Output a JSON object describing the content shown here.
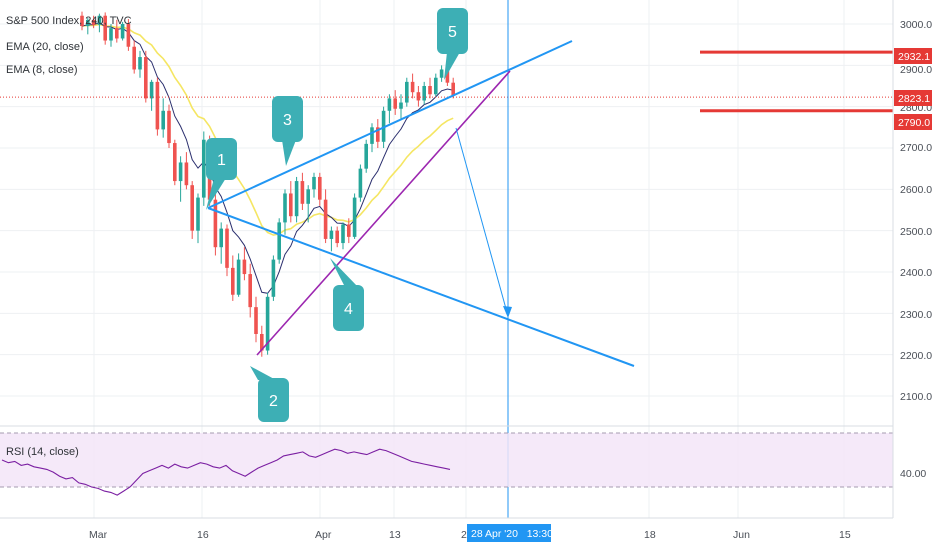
{
  "header": {
    "symbol_title": "S&P 500 Index, 240, TVC",
    "indicators": [
      "EMA (20, close)",
      "EMA (8, close)"
    ],
    "rsi_label": "RSI (14, close)"
  },
  "price_axis": {
    "ticks": [
      "3000.0",
      "2900.0",
      "2800.0",
      "2700.0",
      "2600.0",
      "2500.0",
      "2400.0",
      "2300.0",
      "2200.0",
      "2100.0"
    ],
    "marker_2932": "2932.1",
    "marker_2823": "2823.1",
    "marker_2790": "2790.0"
  },
  "rsi_axis": {
    "ticks": [
      "40.00"
    ]
  },
  "time_axis": {
    "labels": [
      "Mar",
      "16",
      "Apr",
      "13",
      "2",
      "18",
      "Jun",
      "15"
    ],
    "cursor_label": "28 Apr '20   13:30"
  },
  "annotations": {
    "callouts": [
      "1",
      "2",
      "3",
      "4",
      "5"
    ]
  },
  "colors": {
    "up": "#26a69a",
    "down": "#ef5350",
    "ema20": "#f5e663",
    "ema8": "#2b2f6e",
    "trend_blue": "#2196f3",
    "trend_purple": "#9c27b0",
    "callout": "#3dafb5",
    "level_red": "#e53935",
    "rsi": "#7b1fa2",
    "rsi_band": "#f3e5f8"
  },
  "chart_data": {
    "type": "candlestick",
    "title": "S&P 500 Index, 240, TVC",
    "ylim": [
      2040,
      3050
    ],
    "levels": [
      2932.1,
      2823.1,
      2790.0
    ],
    "series": [
      {
        "name": "S&P 500 Index",
        "ohlc_sequence": [
          [
            3020,
            3030,
            2985,
            2995
          ],
          [
            2995,
            3015,
            2975,
            3010
          ],
          [
            3010,
            3020,
            2990,
            2998
          ],
          [
            2998,
            3025,
            2980,
            3020
          ],
          [
            3020,
            3028,
            2950,
            2960
          ],
          [
            2960,
            3000,
            2945,
            2990
          ],
          [
            2990,
            3010,
            2955,
            2965
          ],
          [
            2965,
            3005,
            2960,
            3000
          ],
          [
            3000,
            3012,
            2935,
            2945
          ],
          [
            2945,
            2960,
            2880,
            2890
          ],
          [
            2890,
            2935,
            2870,
            2920
          ],
          [
            2920,
            2935,
            2810,
            2820
          ],
          [
            2820,
            2865,
            2790,
            2860
          ],
          [
            2860,
            2870,
            2730,
            2745
          ],
          [
            2745,
            2820,
            2725,
            2790
          ],
          [
            2790,
            2805,
            2700,
            2712
          ],
          [
            2712,
            2720,
            2610,
            2620
          ],
          [
            2620,
            2680,
            2570,
            2665
          ],
          [
            2665,
            2690,
            2600,
            2610
          ],
          [
            2610,
            2620,
            2480,
            2500
          ],
          [
            2500,
            2590,
            2470,
            2580
          ],
          [
            2580,
            2740,
            2560,
            2720
          ],
          [
            2720,
            2730,
            2560,
            2575
          ],
          [
            2575,
            2590,
            2440,
            2460
          ],
          [
            2460,
            2520,
            2420,
            2505
          ],
          [
            2505,
            2515,
            2390,
            2410
          ],
          [
            2410,
            2440,
            2330,
            2345
          ],
          [
            2345,
            2445,
            2340,
            2430
          ],
          [
            2430,
            2460,
            2380,
            2395
          ],
          [
            2395,
            2420,
            2290,
            2315
          ],
          [
            2315,
            2340,
            2230,
            2250
          ],
          [
            2250,
            2270,
            2195,
            2210
          ],
          [
            2210,
            2350,
            2200,
            2340
          ],
          [
            2340,
            2440,
            2330,
            2430
          ],
          [
            2430,
            2530,
            2420,
            2520
          ],
          [
            2520,
            2600,
            2490,
            2590
          ],
          [
            2590,
            2620,
            2520,
            2535
          ],
          [
            2535,
            2630,
            2520,
            2620
          ],
          [
            2620,
            2640,
            2550,
            2565
          ],
          [
            2565,
            2610,
            2520,
            2600
          ],
          [
            2600,
            2640,
            2580,
            2630
          ],
          [
            2630,
            2640,
            2560,
            2575
          ],
          [
            2575,
            2600,
            2470,
            2480
          ],
          [
            2480,
            2510,
            2450,
            2500
          ],
          [
            2500,
            2510,
            2460,
            2470
          ],
          [
            2470,
            2520,
            2455,
            2515
          ],
          [
            2515,
            2530,
            2470,
            2485
          ],
          [
            2485,
            2590,
            2480,
            2580
          ],
          [
            2580,
            2660,
            2570,
            2650
          ],
          [
            2650,
            2720,
            2640,
            2710
          ],
          [
            2710,
            2760,
            2690,
            2750
          ],
          [
            2750,
            2770,
            2700,
            2715
          ],
          [
            2715,
            2800,
            2700,
            2790
          ],
          [
            2790,
            2830,
            2760,
            2820
          ],
          [
            2820,
            2840,
            2780,
            2795
          ],
          [
            2795,
            2830,
            2770,
            2810
          ],
          [
            2810,
            2870,
            2800,
            2860
          ],
          [
            2860,
            2880,
            2820,
            2835
          ],
          [
            2835,
            2850,
            2800,
            2815
          ],
          [
            2815,
            2860,
            2805,
            2850
          ],
          [
            2850,
            2870,
            2820,
            2830
          ],
          [
            2830,
            2880,
            2825,
            2870
          ],
          [
            2870,
            2900,
            2860,
            2890
          ],
          [
            2890,
            2895,
            2850,
            2858
          ],
          [
            2858,
            2870,
            2820,
            2828
          ]
        ]
      }
    ],
    "ema_lines": [
      "EMA (20, close)",
      "EMA (8, close)"
    ],
    "rsi_series": [
      50,
      48,
      49,
      46,
      47,
      45,
      44,
      43,
      41,
      38,
      36,
      37,
      33,
      32,
      30,
      29,
      27,
      26,
      24,
      27,
      30,
      35,
      40,
      42,
      44,
      46,
      44,
      47,
      45,
      44,
      46,
      48,
      47,
      45,
      44,
      46,
      42,
      40,
      38,
      41,
      44,
      46,
      48,
      50,
      53,
      54,
      55,
      56,
      53,
      52,
      54,
      56,
      58,
      57,
      55,
      56,
      55,
      54,
      56,
      58,
      57,
      55,
      53,
      51,
      49,
      48,
      47,
      46,
      45,
      44,
      43
    ]
  }
}
